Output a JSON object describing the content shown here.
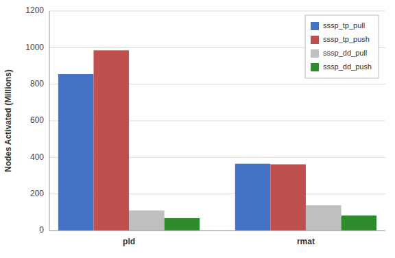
{
  "chart_data": {
    "type": "bar",
    "categories": [
      "pld",
      "rmat"
    ],
    "series": [
      {
        "name": "sssp_tp_pull",
        "color": "#4472C4",
        "values": [
          855,
          365
        ]
      },
      {
        "name": "sssp_tp_push",
        "color": "#C0504D",
        "values": [
          985,
          362
        ]
      },
      {
        "name": "sssp_dd_pull",
        "color": "#BFBFBF",
        "values": [
          110,
          138
        ]
      },
      {
        "name": "sssp_dd_push",
        "color": "#2E8B2E",
        "values": [
          68,
          82
        ]
      }
    ],
    "ylabel": "Nodes Activated (Millions)",
    "ylim": [
      0,
      1200
    ],
    "yticks": [
      0,
      200,
      400,
      600,
      800,
      1000,
      1200
    ],
    "grid": true,
    "legend": "upper right"
  }
}
